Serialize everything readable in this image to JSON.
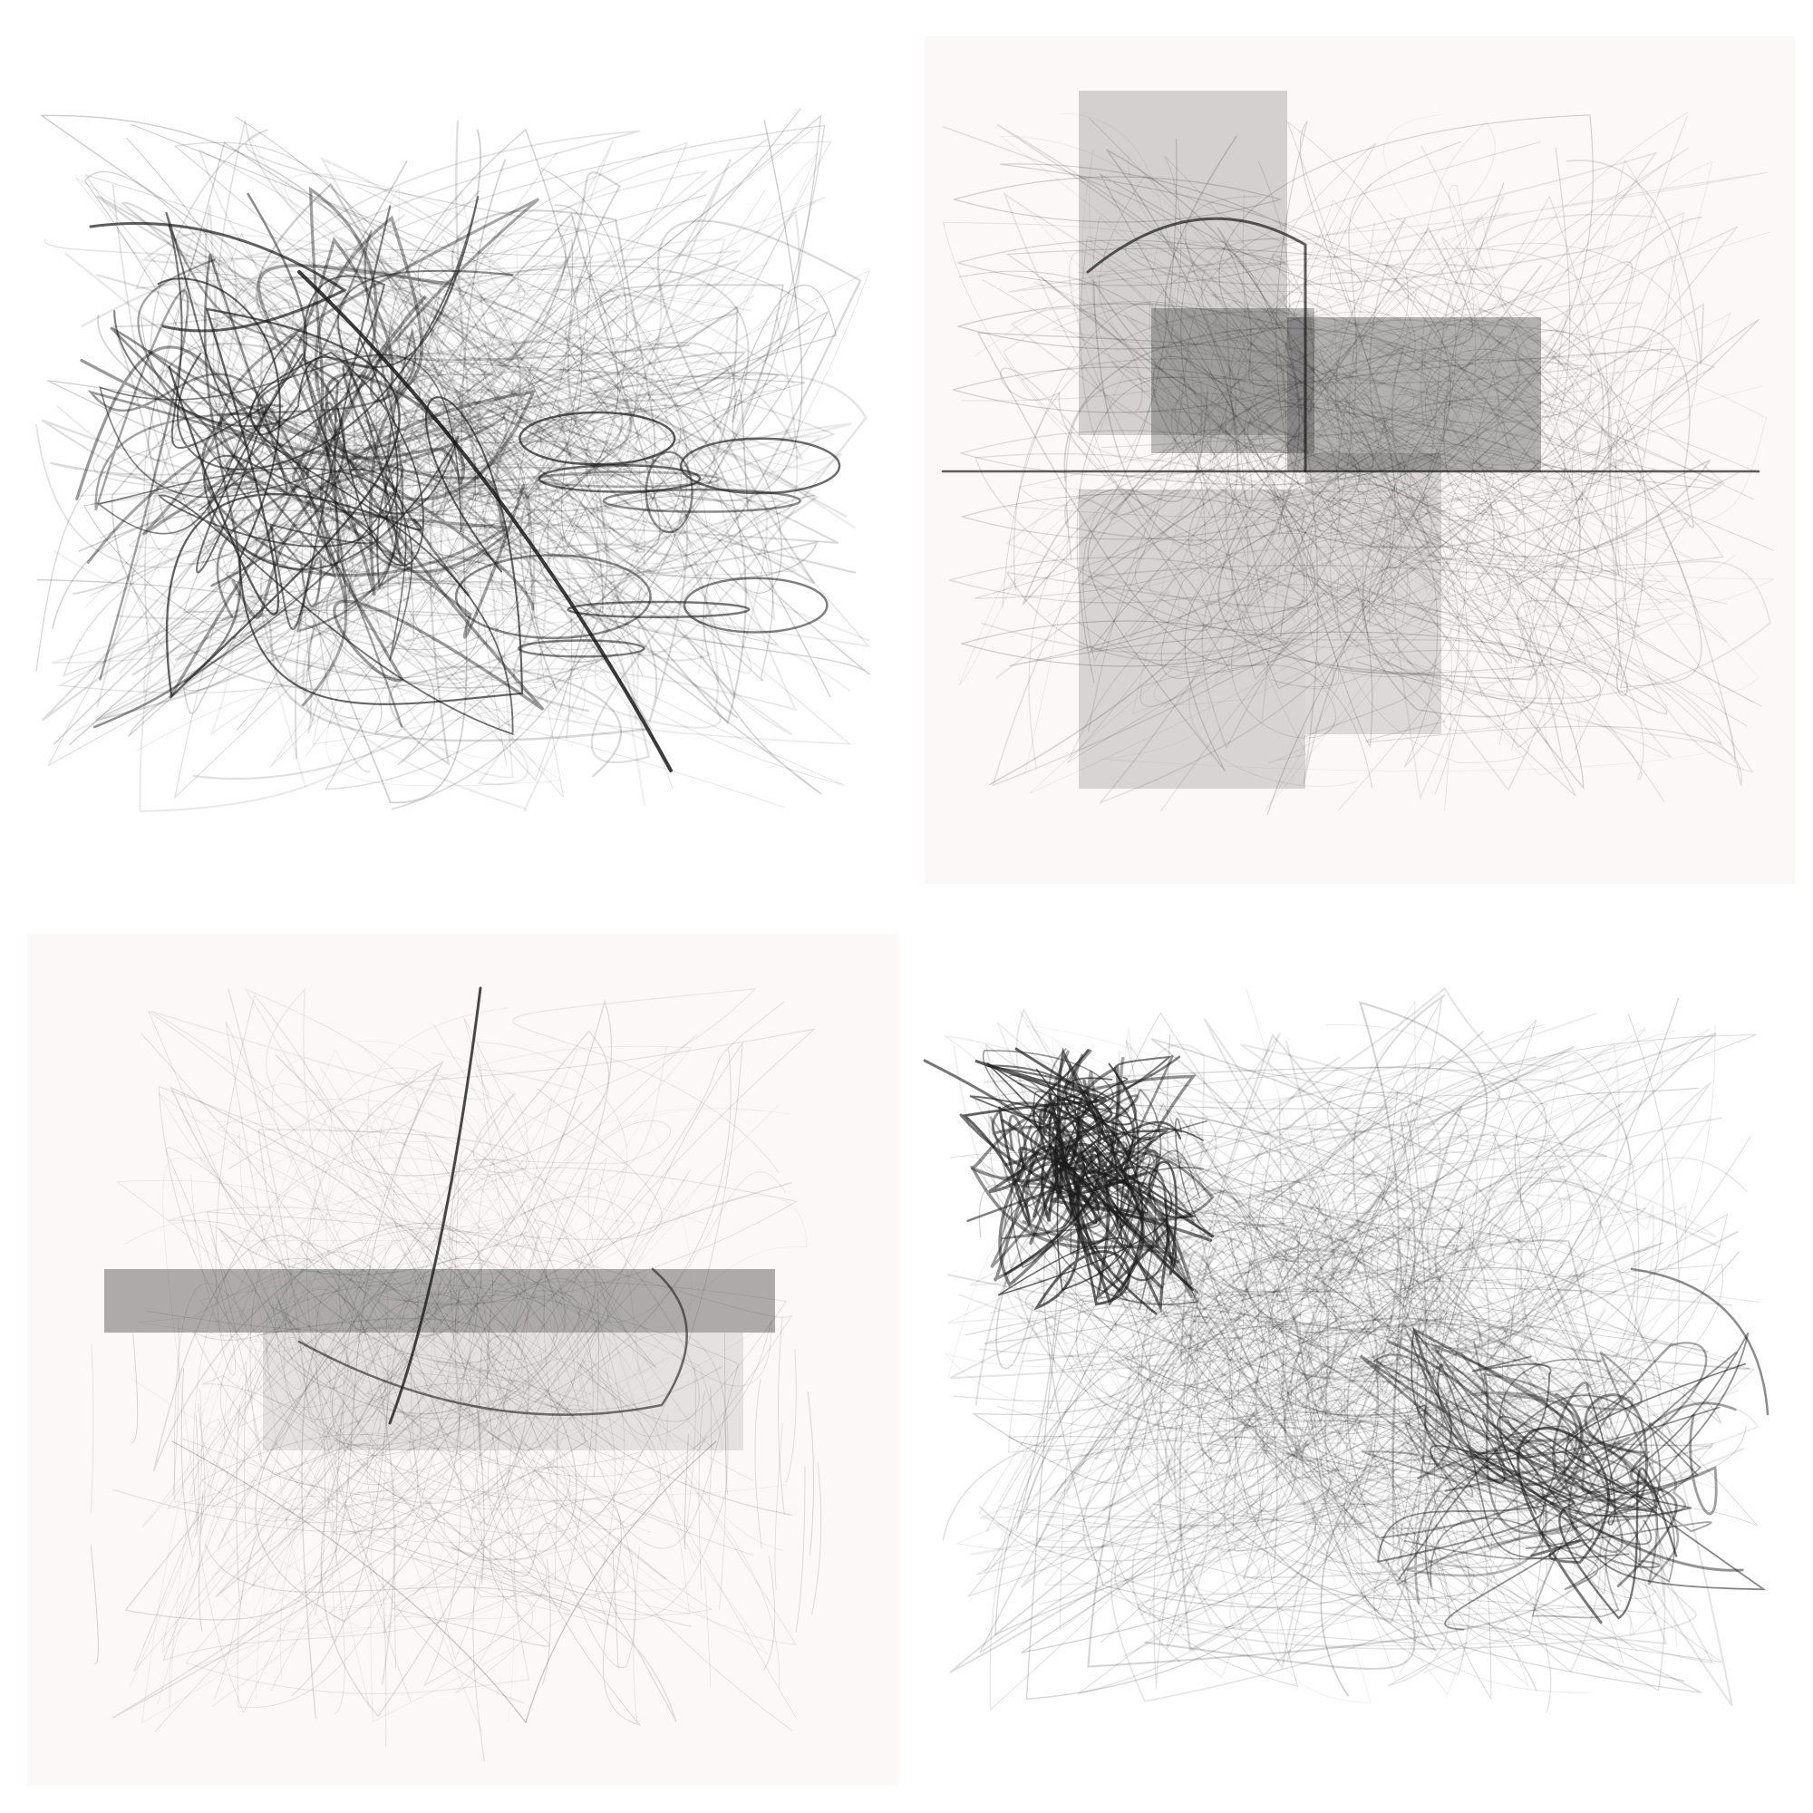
{
  "grid": {
    "panels": [
      {
        "id": "top-left",
        "background": "#ffffff",
        "style": "chaotic scribble strokes"
      },
      {
        "id": "top-right",
        "background": "#fdf8f8",
        "style": "stacked cylinder strokes"
      },
      {
        "id": "bottom-left",
        "background": "#fdf8f8",
        "style": "horizontal band with drips"
      },
      {
        "id": "bottom-right",
        "background": "#ffffff",
        "style": "swirling cloud strokes"
      }
    ]
  },
  "colors": {
    "ink": "#1a1a1a",
    "white": "#ffffff",
    "blush": "#fdf8f8"
  }
}
